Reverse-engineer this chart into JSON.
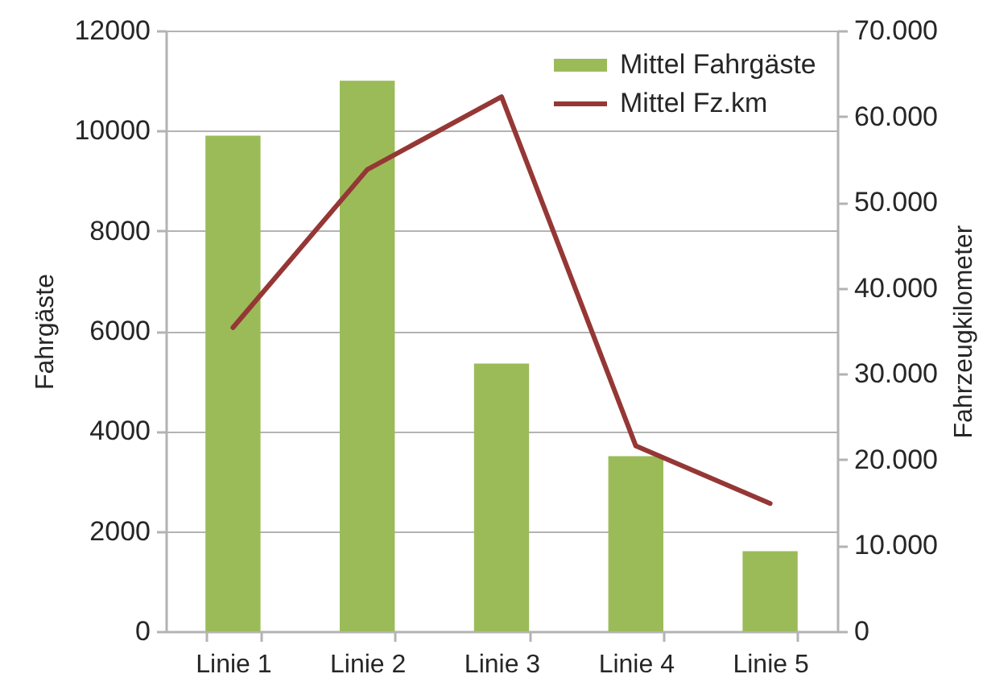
{
  "chart_data": {
    "type": "bar",
    "categories": [
      "Linie 1",
      "Linie 2",
      "Linie 3",
      "Linie 4",
      "Linie 5"
    ],
    "series": [
      {
        "name": "Mittel Fahrgäste",
        "color": "#9bbb59",
        "values": [
          9900,
          11000,
          5350,
          3500,
          1600
        ]
      },
      {
        "name": "Mittel Fz.km",
        "type": "line",
        "axis": "y2",
        "color": "#953735",
        "values": [
          35400,
          53800,
          62300,
          21600,
          14900
        ]
      }
    ],
    "ylabel": "Fahrgäste",
    "y2label": "Fahrzeugkilometer",
    "ylim": [
      0,
      12000
    ],
    "yticks": [
      0,
      2000,
      4000,
      6000,
      8000,
      10000,
      12000
    ],
    "y2lim": [
      0,
      70000
    ],
    "y2ticks": [
      0,
      {
        "value": 10000,
        "label": "10.000"
      },
      {
        "value": 20000,
        "label": "20.000"
      },
      {
        "value": 30000,
        "label": "30.000"
      },
      {
        "value": 40000,
        "label": "40.000"
      },
      {
        "value": 50000,
        "label": "50.000"
      },
      {
        "value": 60000,
        "label": "60.000"
      },
      {
        "value": 70000,
        "label": "70.000"
      }
    ],
    "grid": "y",
    "legend": "top right"
  }
}
